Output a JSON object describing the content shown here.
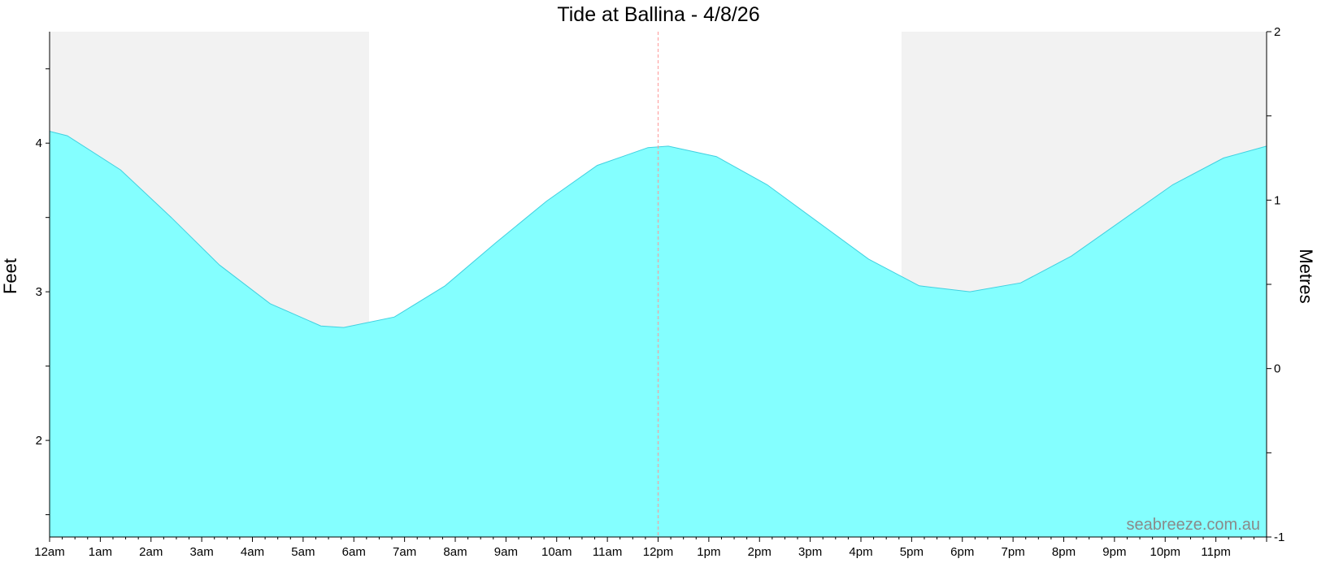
{
  "chart_data": {
    "type": "area",
    "title": "Tide at Ballina - 4/8/26",
    "ylabel": "Feet",
    "y2label": "Metres",
    "watermark": "seabreeze.com.au",
    "x_tick_labels": [
      "12am",
      "1am",
      "2am",
      "3am",
      "4am",
      "5am",
      "6am",
      "7am",
      "8am",
      "9am",
      "10am",
      "11am",
      "12pm",
      "1pm",
      "2pm",
      "3pm",
      "4pm",
      "5pm",
      "6pm",
      "7pm",
      "8pm",
      "9pm",
      "10pm",
      "11pm"
    ],
    "y_ticks": [
      2,
      3,
      4
    ],
    "y_range": [
      1.35,
      4.75
    ],
    "y2_ticks": [
      -1,
      0,
      1,
      2
    ],
    "y2_range": [
      -1,
      2
    ],
    "x_range_hours": [
      0,
      24
    ],
    "dark_periods_hours": [
      [
        0,
        6.3
      ],
      [
        16.8,
        24
      ]
    ],
    "current_time_hours": 12.0,
    "colors": {
      "fill": "#80ffff",
      "line": "#40d0e0",
      "night": "#f2f2f2",
      "marker": "#ff9999"
    },
    "series": [
      {
        "x": [
          0,
          0.35,
          1.4,
          2.4,
          3.35,
          4.35,
          5.35,
          5.8,
          6.8,
          7.8,
          8.8,
          9.8,
          10.8,
          11.8,
          12.2,
          13.15,
          14.15,
          15.15,
          16.15,
          17.15,
          18.15,
          19.15,
          20.15,
          21.15,
          22.15,
          23.15,
          24
        ],
        "y": [
          4.08,
          4.05,
          3.82,
          3.5,
          3.18,
          2.92,
          2.77,
          2.76,
          2.83,
          3.04,
          3.33,
          3.61,
          3.85,
          3.97,
          3.98,
          3.91,
          3.72,
          3.47,
          3.22,
          3.04,
          3.0,
          3.06,
          3.24,
          3.48,
          3.72,
          3.9,
          3.98
        ]
      }
    ]
  }
}
